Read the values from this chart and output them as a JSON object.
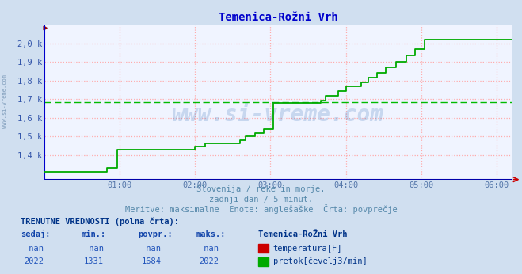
{
  "title": "Temenica-Rožni Vrh",
  "title_color": "#0000cc",
  "title_fontsize": 10,
  "bg_color": "#d0dff0",
  "plot_bg_color": "#f0f4ff",
  "grid_color": "#ffaaaa",
  "grid_linestyle": "dotted",
  "xlabel_color": "#5577aa",
  "ylabel_color": "#3355aa",
  "axis_color": "#0000cc",
  "avg_line_color": "#00bb00",
  "avg_line_value": 1684,
  "flow_line_color": "#00aa00",
  "base_line_color": "#0000aa",
  "xmin": 0,
  "xmax": 372,
  "ymin": 1270,
  "ymax": 2100,
  "yticks": [
    1400,
    1500,
    1600,
    1700,
    1800,
    1900,
    2000
  ],
  "ytick_labels": [
    ",4 k",
    ",5 k",
    ",6 k",
    ",7 k",
    ",8 k",
    ",9 k",
    ",0 k"
  ],
  "ytick_prefix": [
    "1",
    "1",
    "1",
    "1",
    "1",
    "1",
    "2"
  ],
  "xtick_positions": [
    60,
    120,
    180,
    240,
    300,
    360
  ],
  "xtick_labels": [
    "01:00",
    "02:00",
    "03:00",
    "04:00",
    "05:00",
    "06:00"
  ],
  "flow_x": [
    0,
    50,
    50,
    58,
    58,
    120,
    120,
    128,
    128,
    156,
    156,
    160,
    160,
    168,
    168,
    175,
    175,
    182,
    182,
    220,
    220,
    224,
    224,
    234,
    234,
    240,
    240,
    252,
    252,
    258,
    258,
    265,
    265,
    272,
    272,
    280,
    280,
    288,
    288,
    295,
    295,
    303,
    303,
    372
  ],
  "flow_y": [
    1310,
    1310,
    1330,
    1330,
    1430,
    1430,
    1445,
    1445,
    1465,
    1465,
    1480,
    1480,
    1500,
    1500,
    1520,
    1520,
    1540,
    1540,
    1680,
    1680,
    1695,
    1695,
    1720,
    1720,
    1745,
    1745,
    1770,
    1770,
    1790,
    1790,
    1815,
    1815,
    1840,
    1840,
    1870,
    1870,
    1900,
    1900,
    1935,
    1935,
    1970,
    1970,
    2022,
    2022
  ],
  "subtitle1": "Slovenija / reke in morje.",
  "subtitle2": "zadnji dan / 5 minut.",
  "subtitle3": "Meritve: maksimalne  Enote: anglešaške  Črta: povprečje",
  "subtitle_color": "#5588aa",
  "table_header": "TRENUTNE VREDNOSTI (polna črta):",
  "table_header_color": "#003388",
  "col_headers": [
    "sedaj:",
    "min.:",
    "povpr.:",
    "maks.:"
  ],
  "col_header_color": "#1144aa",
  "station_name": "Temenica-RoŽni Vrh",
  "station_color": "#003388",
  "row1_values": [
    "-nan",
    "-nan",
    "-nan",
    "-nan"
  ],
  "row2_values": [
    "2022",
    "1331",
    "1684",
    "2022"
  ],
  "row_color": "#2255bb",
  "legend_labels": [
    "temperatura[F]",
    "pretok[čevelj3/min]"
  ],
  "legend_colors": [
    "#cc0000",
    "#00aa00"
  ],
  "watermark": "www.si-vreme.com",
  "watermark_color": "#1155aa",
  "watermark_alpha": 0.18,
  "left_label": "www.si-vreme.com",
  "left_label_color": "#6688aa"
}
